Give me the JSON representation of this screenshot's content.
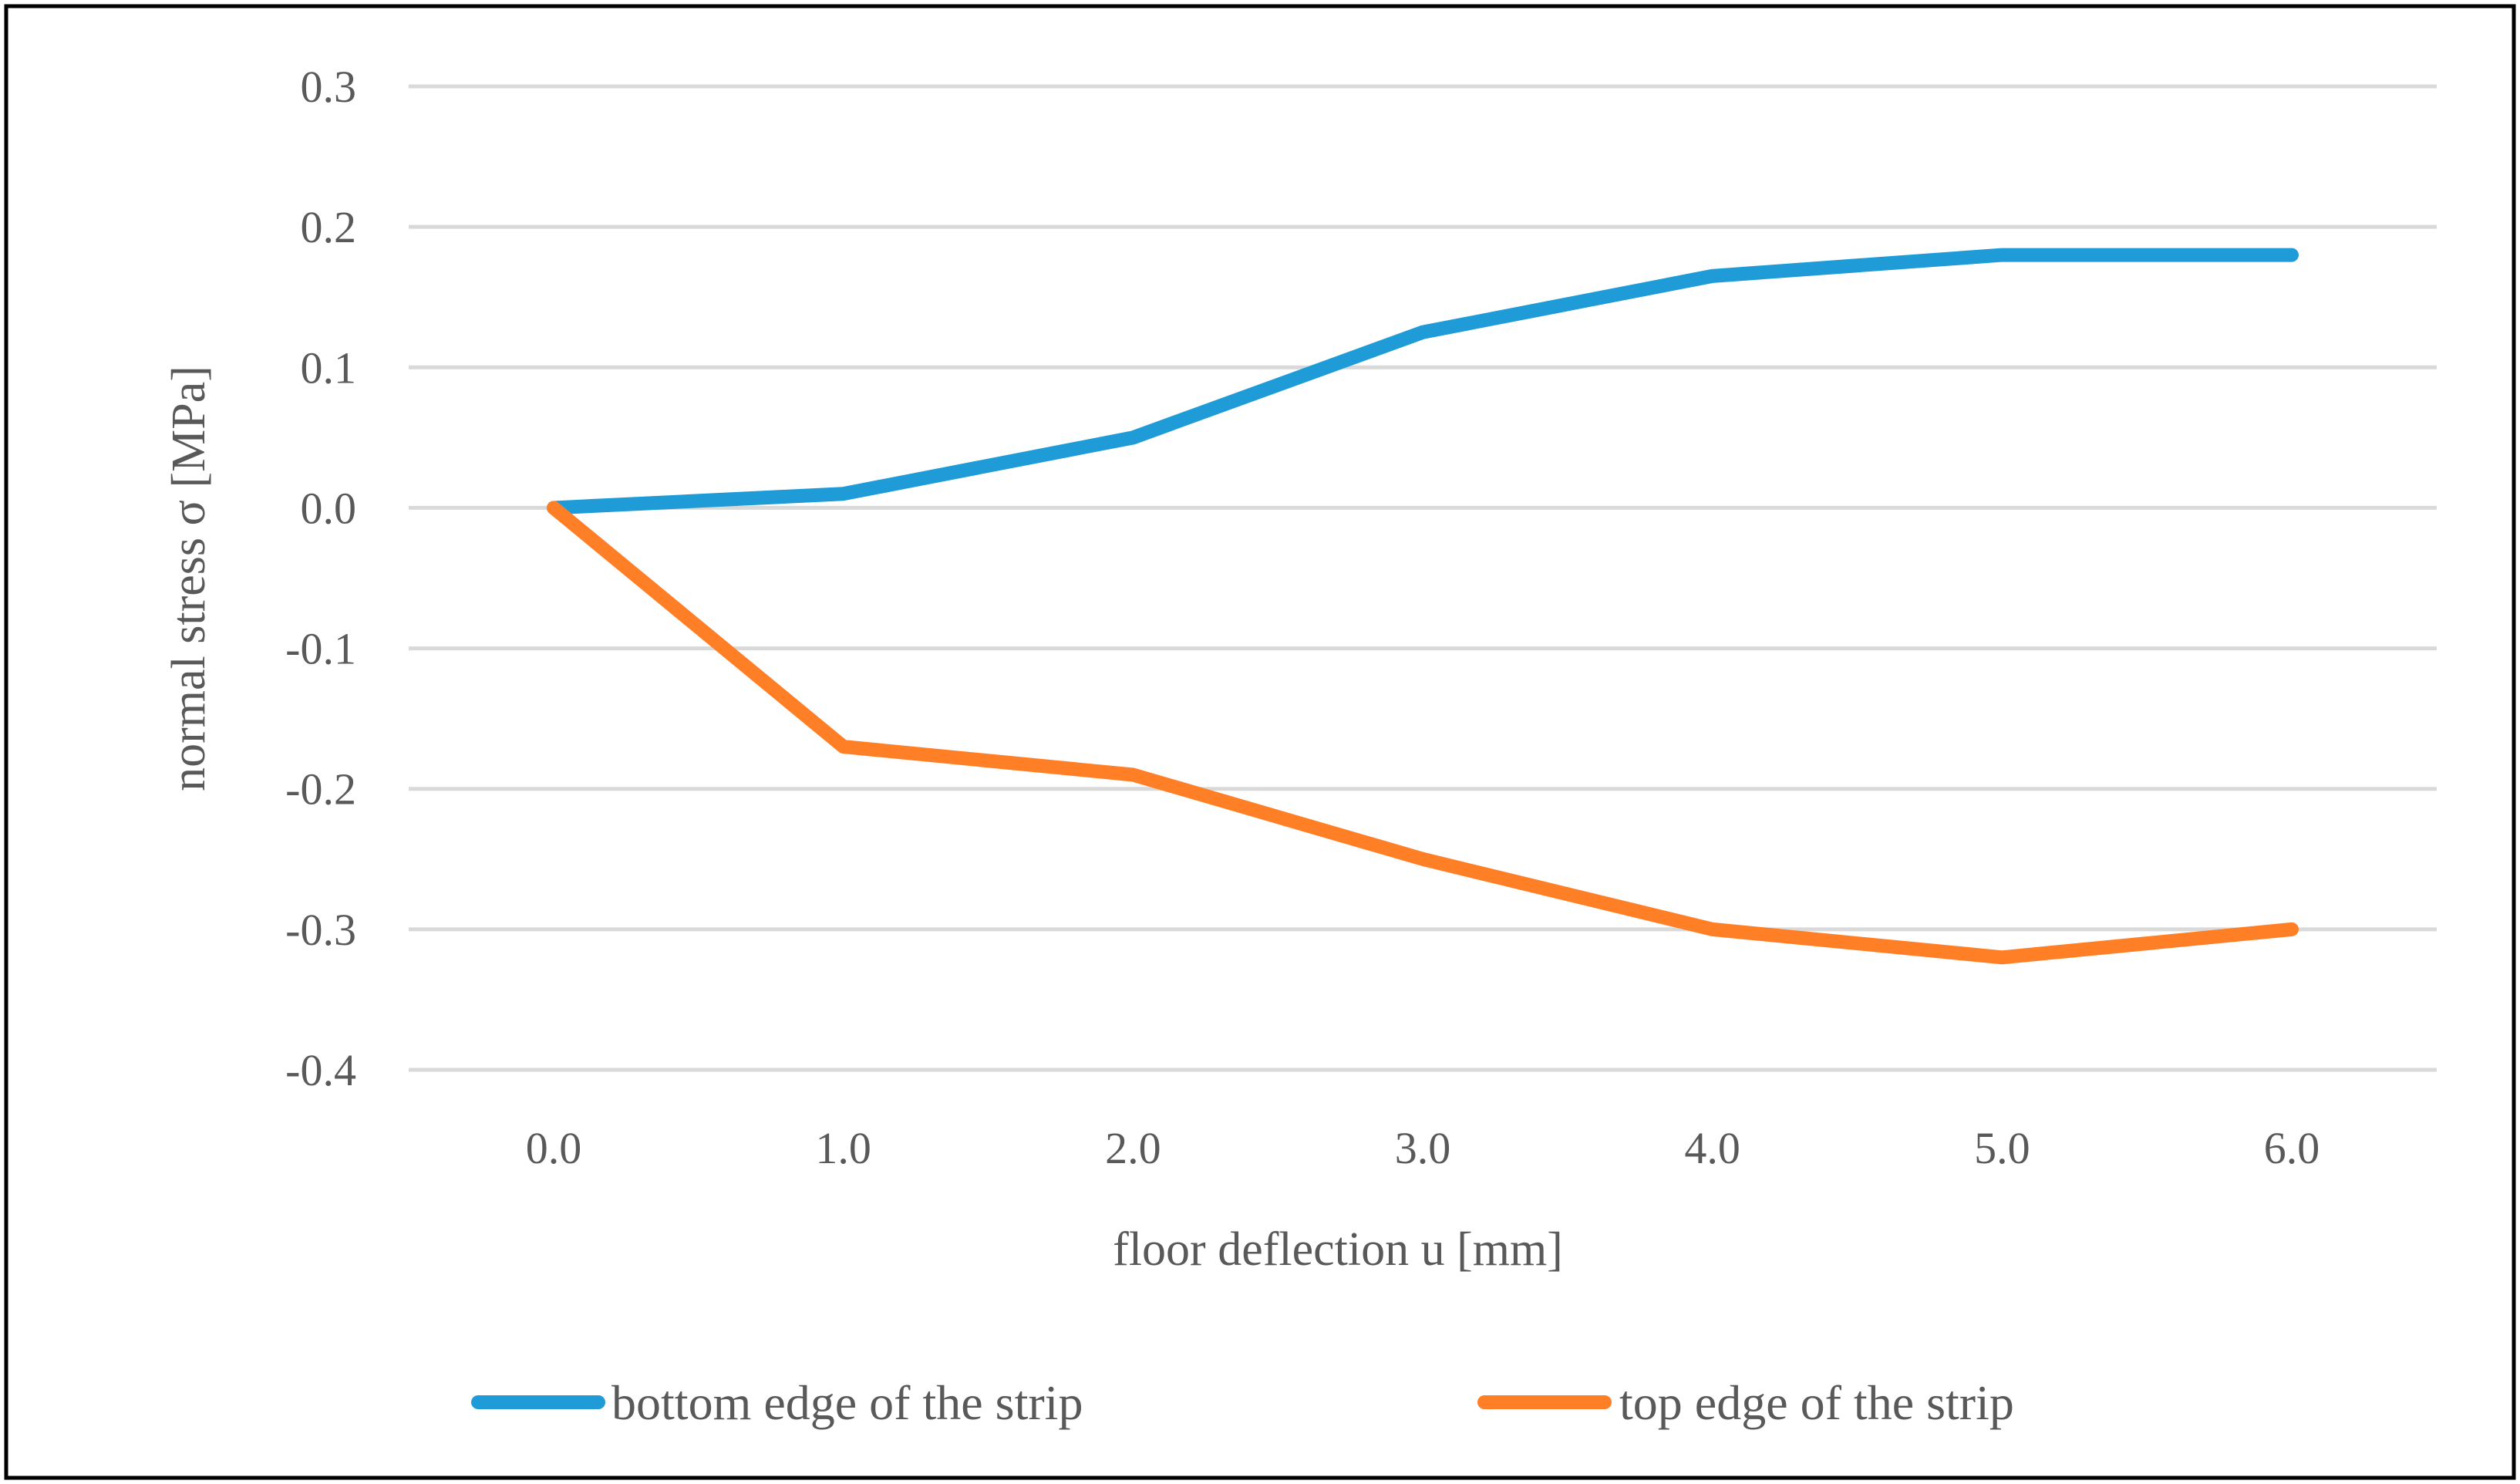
{
  "chart_data": {
    "type": "line",
    "title": "",
    "xlabel": "floor deflection u [mm]",
    "ylabel": "normal stress σ [MPa]",
    "categories": [
      "0.0",
      "1.0",
      "2.0",
      "3.0",
      "4.0",
      "5.0",
      "6.0"
    ],
    "x": [
      0,
      1,
      2,
      3,
      4,
      5,
      6
    ],
    "ylim": [
      -0.4,
      0.3
    ],
    "yticks": [
      0.3,
      0.2,
      0.1,
      0.0,
      -0.1,
      -0.2,
      -0.3,
      -0.4
    ],
    "ytick_labels": [
      "0.3",
      "0.2",
      "0.1",
      "0.0",
      "-0.1",
      "-0.2",
      "-0.3",
      "-0.4"
    ],
    "grid": true,
    "legend_position": "bottom",
    "series": [
      {
        "name": "bottom edge of the strip",
        "color": "#1f9bd7",
        "values": [
          0.0,
          0.01,
          0.05,
          0.125,
          0.165,
          0.18,
          0.18
        ]
      },
      {
        "name": "top edge of the strip",
        "color": "#ff7f27",
        "values": [
          0.0,
          -0.17,
          -0.19,
          -0.25,
          -0.3,
          -0.32,
          -0.3
        ]
      }
    ]
  }
}
